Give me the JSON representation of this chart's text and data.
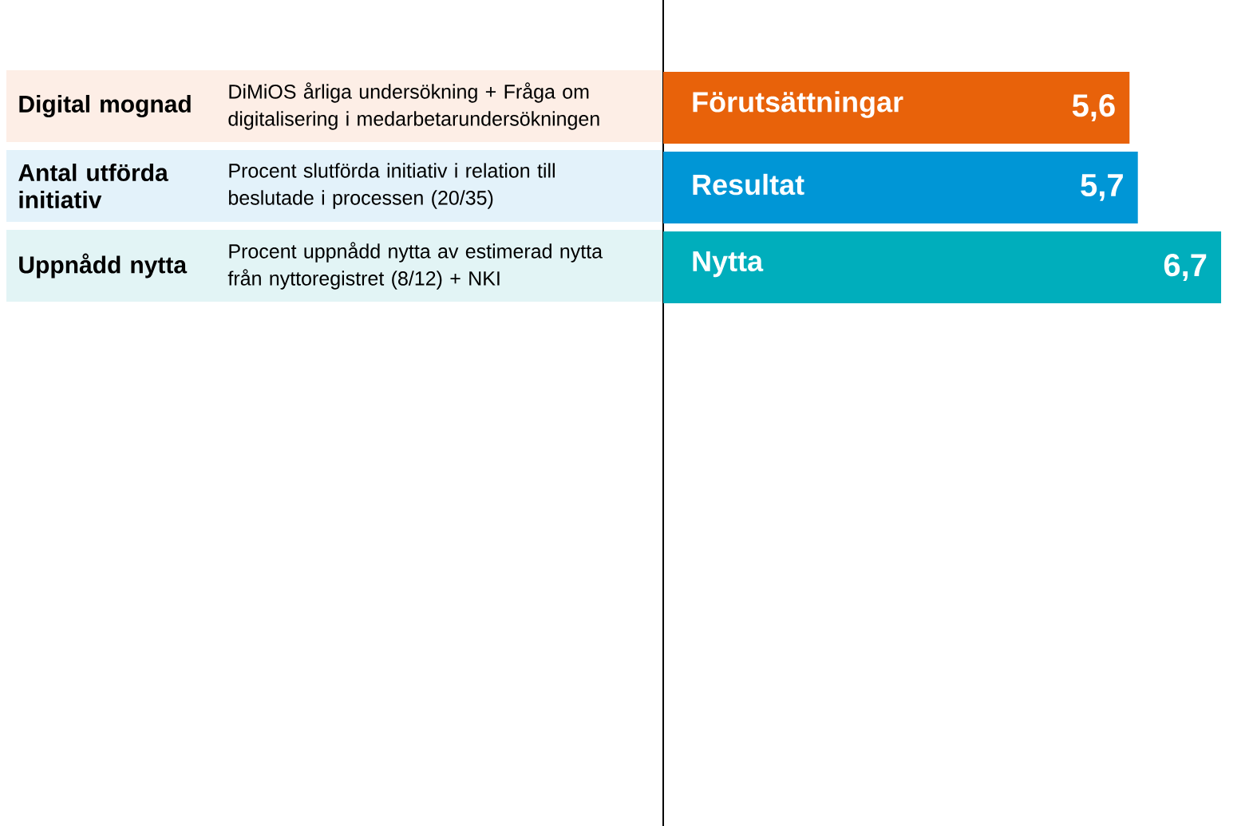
{
  "chart_data": {
    "type": "bar",
    "orientation": "horizontal",
    "categories": [
      "Förutsättningar",
      "Resultat",
      "Nytta"
    ],
    "values": [
      5.6,
      5.7,
      6.7
    ],
    "colors": [
      "#e8620a",
      "#0096d6",
      "#00aebc"
    ],
    "value_labels": [
      "5,6",
      "5,7",
      "6,7"
    ],
    "annotations": [
      "Digital mognad",
      "DiMiOS årliga undersökning + Fråga om digitalisering i medarbetarundersökningen",
      "Antal utförda initiativ",
      "Procent slutförda initiativ i relation till beslutade i processen (20/35)",
      "Uppnådd nytta",
      "Procent uppnådd nytta av estimerad nytta från nyttoregistret (8/12) + NKI"
    ]
  }
}
